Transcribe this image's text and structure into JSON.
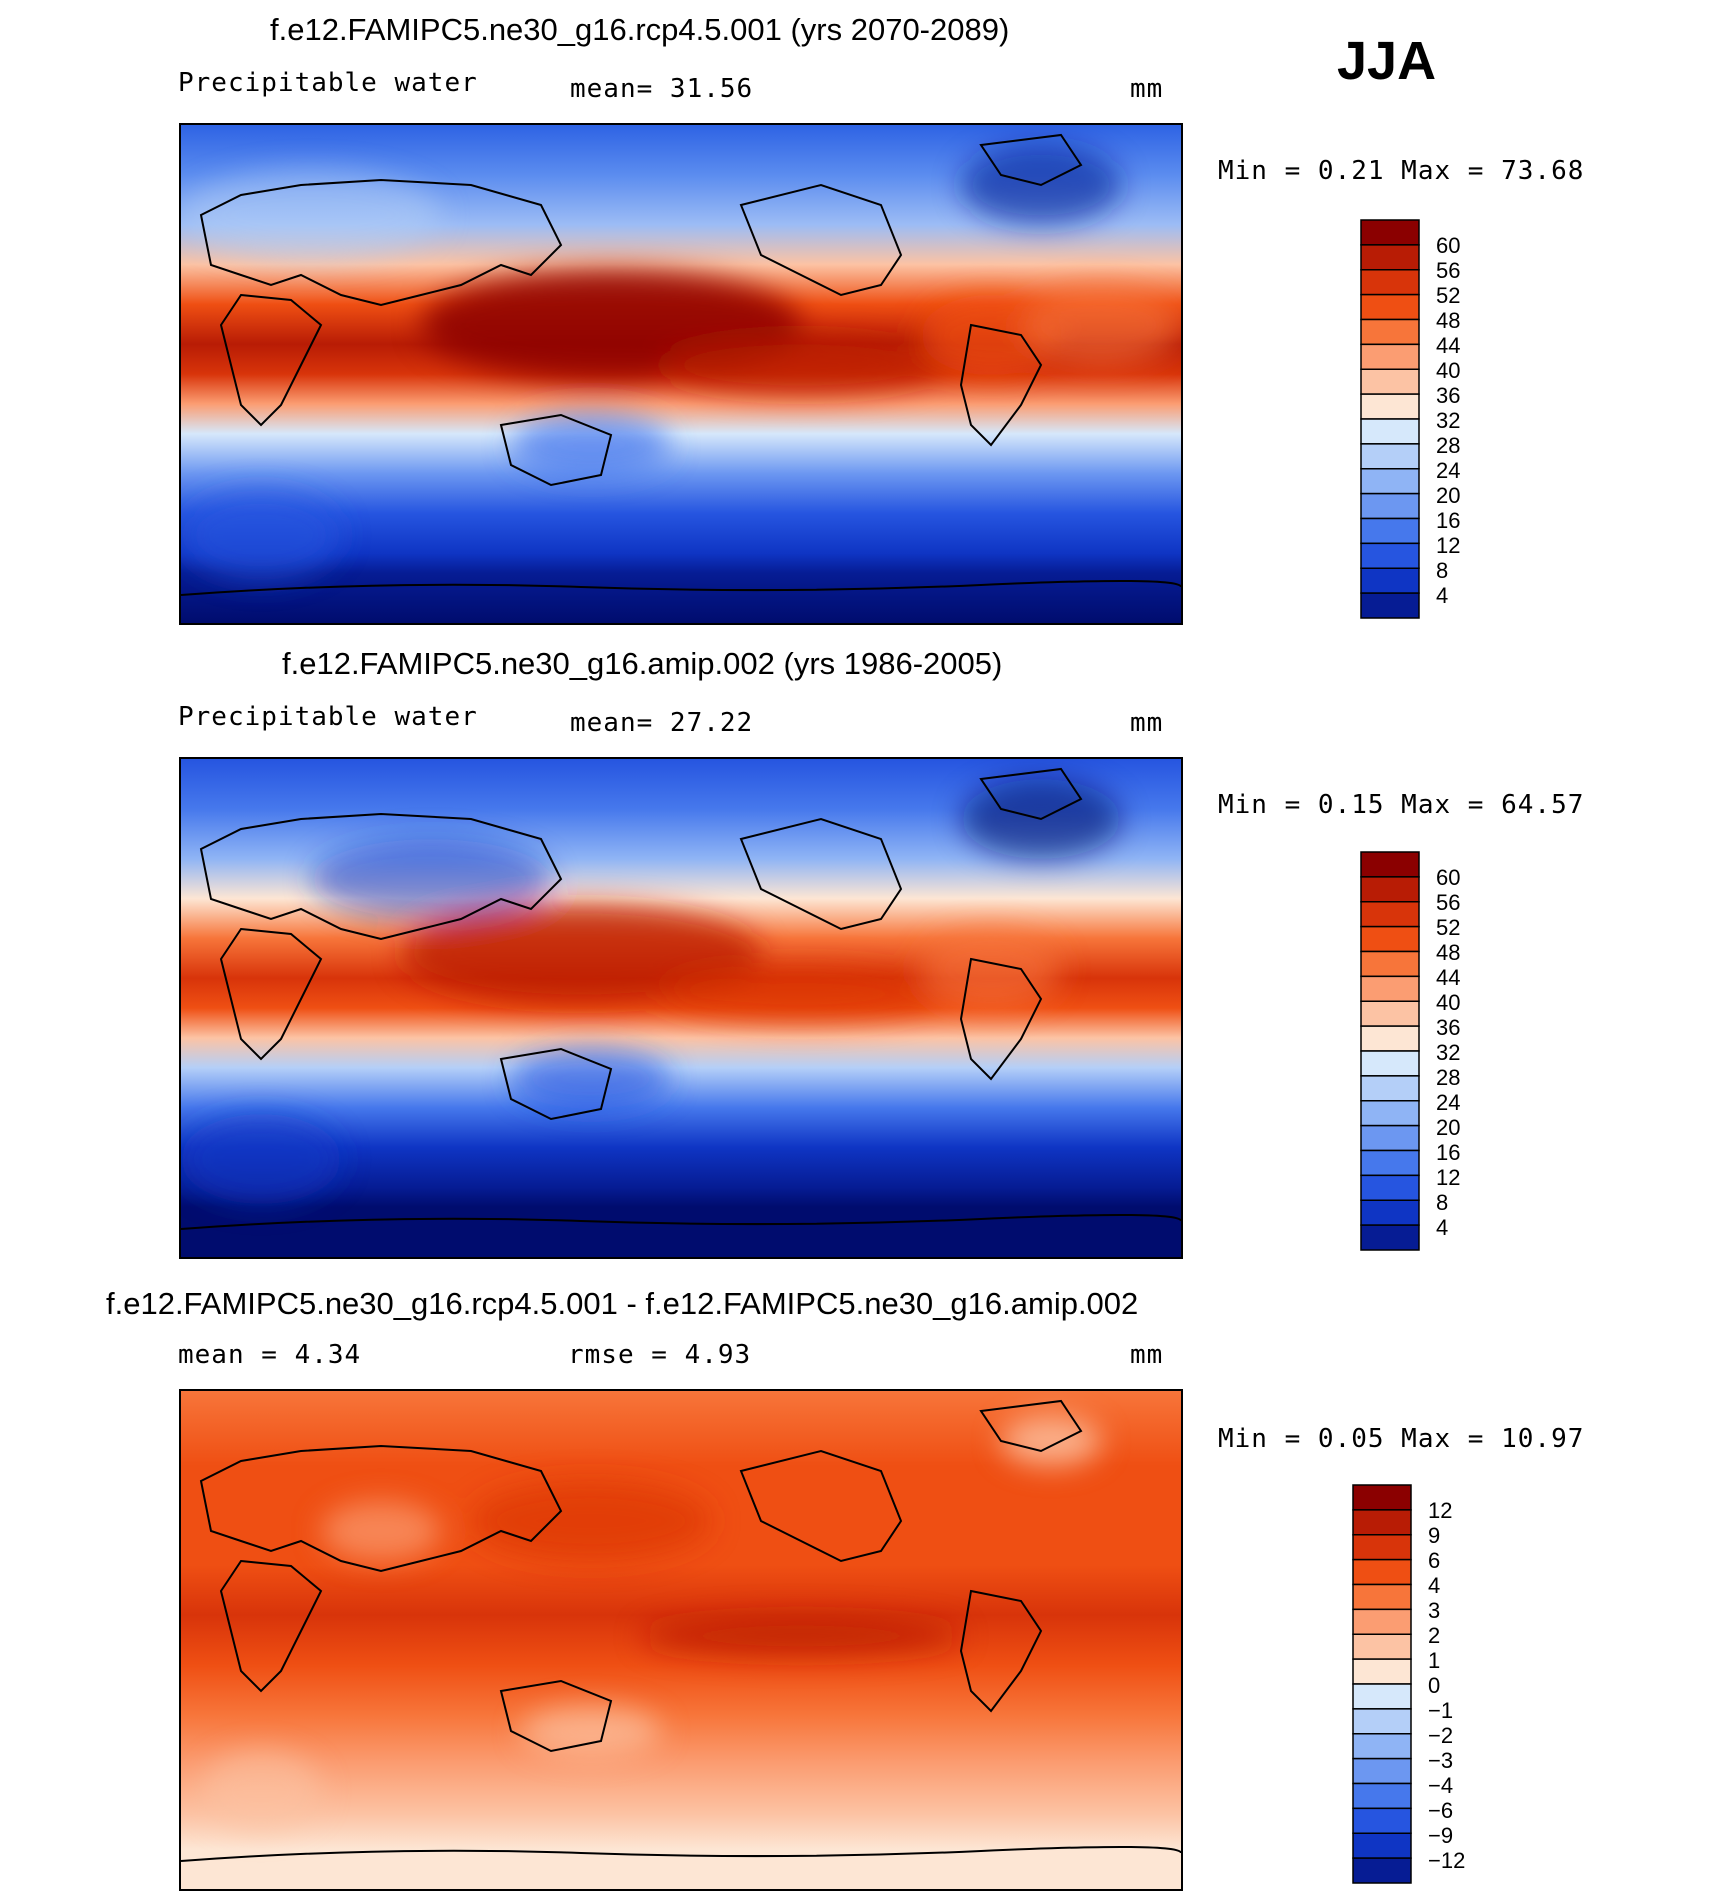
{
  "season_label": "JJA",
  "units": "mm",
  "panels": [
    {
      "id": "future",
      "title": "f.e12.FAMIPC5.ne30_g16.rcp4.5.001 (yrs 2070-2089)",
      "variable": "Precipitable water",
      "stat_text": "mean=   31.56",
      "units": "mm",
      "minmax_text": "Min =   0.21 Max =   73.68",
      "colorbar": {
        "labels": [
          "60",
          "56",
          "52",
          "48",
          "44",
          "40",
          "36",
          "32",
          "28",
          "24",
          "20",
          "16",
          "12",
          "8",
          "4"
        ],
        "colors": [
          "#8b0000",
          "#b81c05",
          "#d8340a",
          "#ef4f13",
          "#f7753a",
          "#fb9d72",
          "#fcc3a4",
          "#fde6d4",
          "#d6e8fb",
          "#b4cff8",
          "#8fb4f5",
          "#6c97f1",
          "#4678ec",
          "#2655e0",
          "#0f35c4",
          "#061c94"
        ]
      },
      "chart_data": {
        "type": "heatmap",
        "title": "f.e12.FAMIPC5.ne30_g16.rcp4.5.001 (yrs 2070-2089)",
        "subtitle": "Precipitable water",
        "units": "mm",
        "mean": 31.56,
        "min": 0.21,
        "max": 73.68,
        "levels": [
          4,
          8,
          12,
          16,
          20,
          24,
          28,
          32,
          36,
          40,
          44,
          48,
          52,
          56,
          60
        ],
        "lon_range": [
          0,
          360
        ],
        "lat_range": [
          -90,
          90
        ]
      }
    },
    {
      "id": "baseline",
      "title": "f.e12.FAMIPC5.ne30_g16.amip.002 (yrs 1986-2005)",
      "variable": "Precipitable water",
      "stat_text": "mean=   27.22",
      "units": "mm",
      "minmax_text": "Min =   0.15 Max =   64.57",
      "colorbar": {
        "labels": [
          "60",
          "56",
          "52",
          "48",
          "44",
          "40",
          "36",
          "32",
          "28",
          "24",
          "20",
          "16",
          "12",
          "8",
          "4"
        ],
        "colors": [
          "#8b0000",
          "#b81c05",
          "#d8340a",
          "#ef4f13",
          "#f7753a",
          "#fb9d72",
          "#fcc3a4",
          "#fde6d4",
          "#d6e8fb",
          "#b4cff8",
          "#8fb4f5",
          "#6c97f1",
          "#4678ec",
          "#2655e0",
          "#0f35c4",
          "#061c94"
        ]
      },
      "chart_data": {
        "type": "heatmap",
        "title": "f.e12.FAMIPC5.ne30_g16.amip.002 (yrs 1986-2005)",
        "subtitle": "Precipitable water",
        "units": "mm",
        "mean": 27.22,
        "min": 0.15,
        "max": 64.57,
        "levels": [
          4,
          8,
          12,
          16,
          20,
          24,
          28,
          32,
          36,
          40,
          44,
          48,
          52,
          56,
          60
        ],
        "lon_range": [
          0,
          360
        ],
        "lat_range": [
          -90,
          90
        ]
      }
    },
    {
      "id": "difference",
      "title": "f.e12.FAMIPC5.ne30_g16.rcp4.5.001 - f.e12.FAMIPC5.ne30_g16.amip.002",
      "stat_text": "mean =    4.34",
      "rmse_text": "rmse =    4.93",
      "units": "mm",
      "minmax_text": "Min =   0.05 Max =   10.97",
      "colorbar": {
        "labels": [
          "12",
          "9",
          "6",
          "4",
          "3",
          "2",
          "1",
          "0",
          "−1",
          "−2",
          "−3",
          "−4",
          "−6",
          "−9",
          "−12"
        ],
        "colors": [
          "#8b0000",
          "#b81c05",
          "#d8340a",
          "#ef4f13",
          "#f7753a",
          "#fb9d72",
          "#fcc3a4",
          "#fde6d4",
          "#d6e8fb",
          "#b4cff8",
          "#8fb4f5",
          "#6c97f1",
          "#4678ec",
          "#2655e0",
          "#0f35c4",
          "#061c94"
        ]
      },
      "chart_data": {
        "type": "heatmap",
        "title": "f.e12.FAMIPC5.ne30_g16.rcp4.5.001 - f.e12.FAMIPC5.ne30_g16.amip.002",
        "units": "mm",
        "mean": 4.34,
        "rmse": 4.93,
        "min": 0.05,
        "max": 10.97,
        "levels": [
          -12,
          -9,
          -6,
          -4,
          -3,
          -2,
          -1,
          0,
          1,
          2,
          3,
          4,
          6,
          9,
          12
        ],
        "lon_range": [
          0,
          360
        ],
        "lat_range": [
          -90,
          90
        ]
      }
    }
  ]
}
